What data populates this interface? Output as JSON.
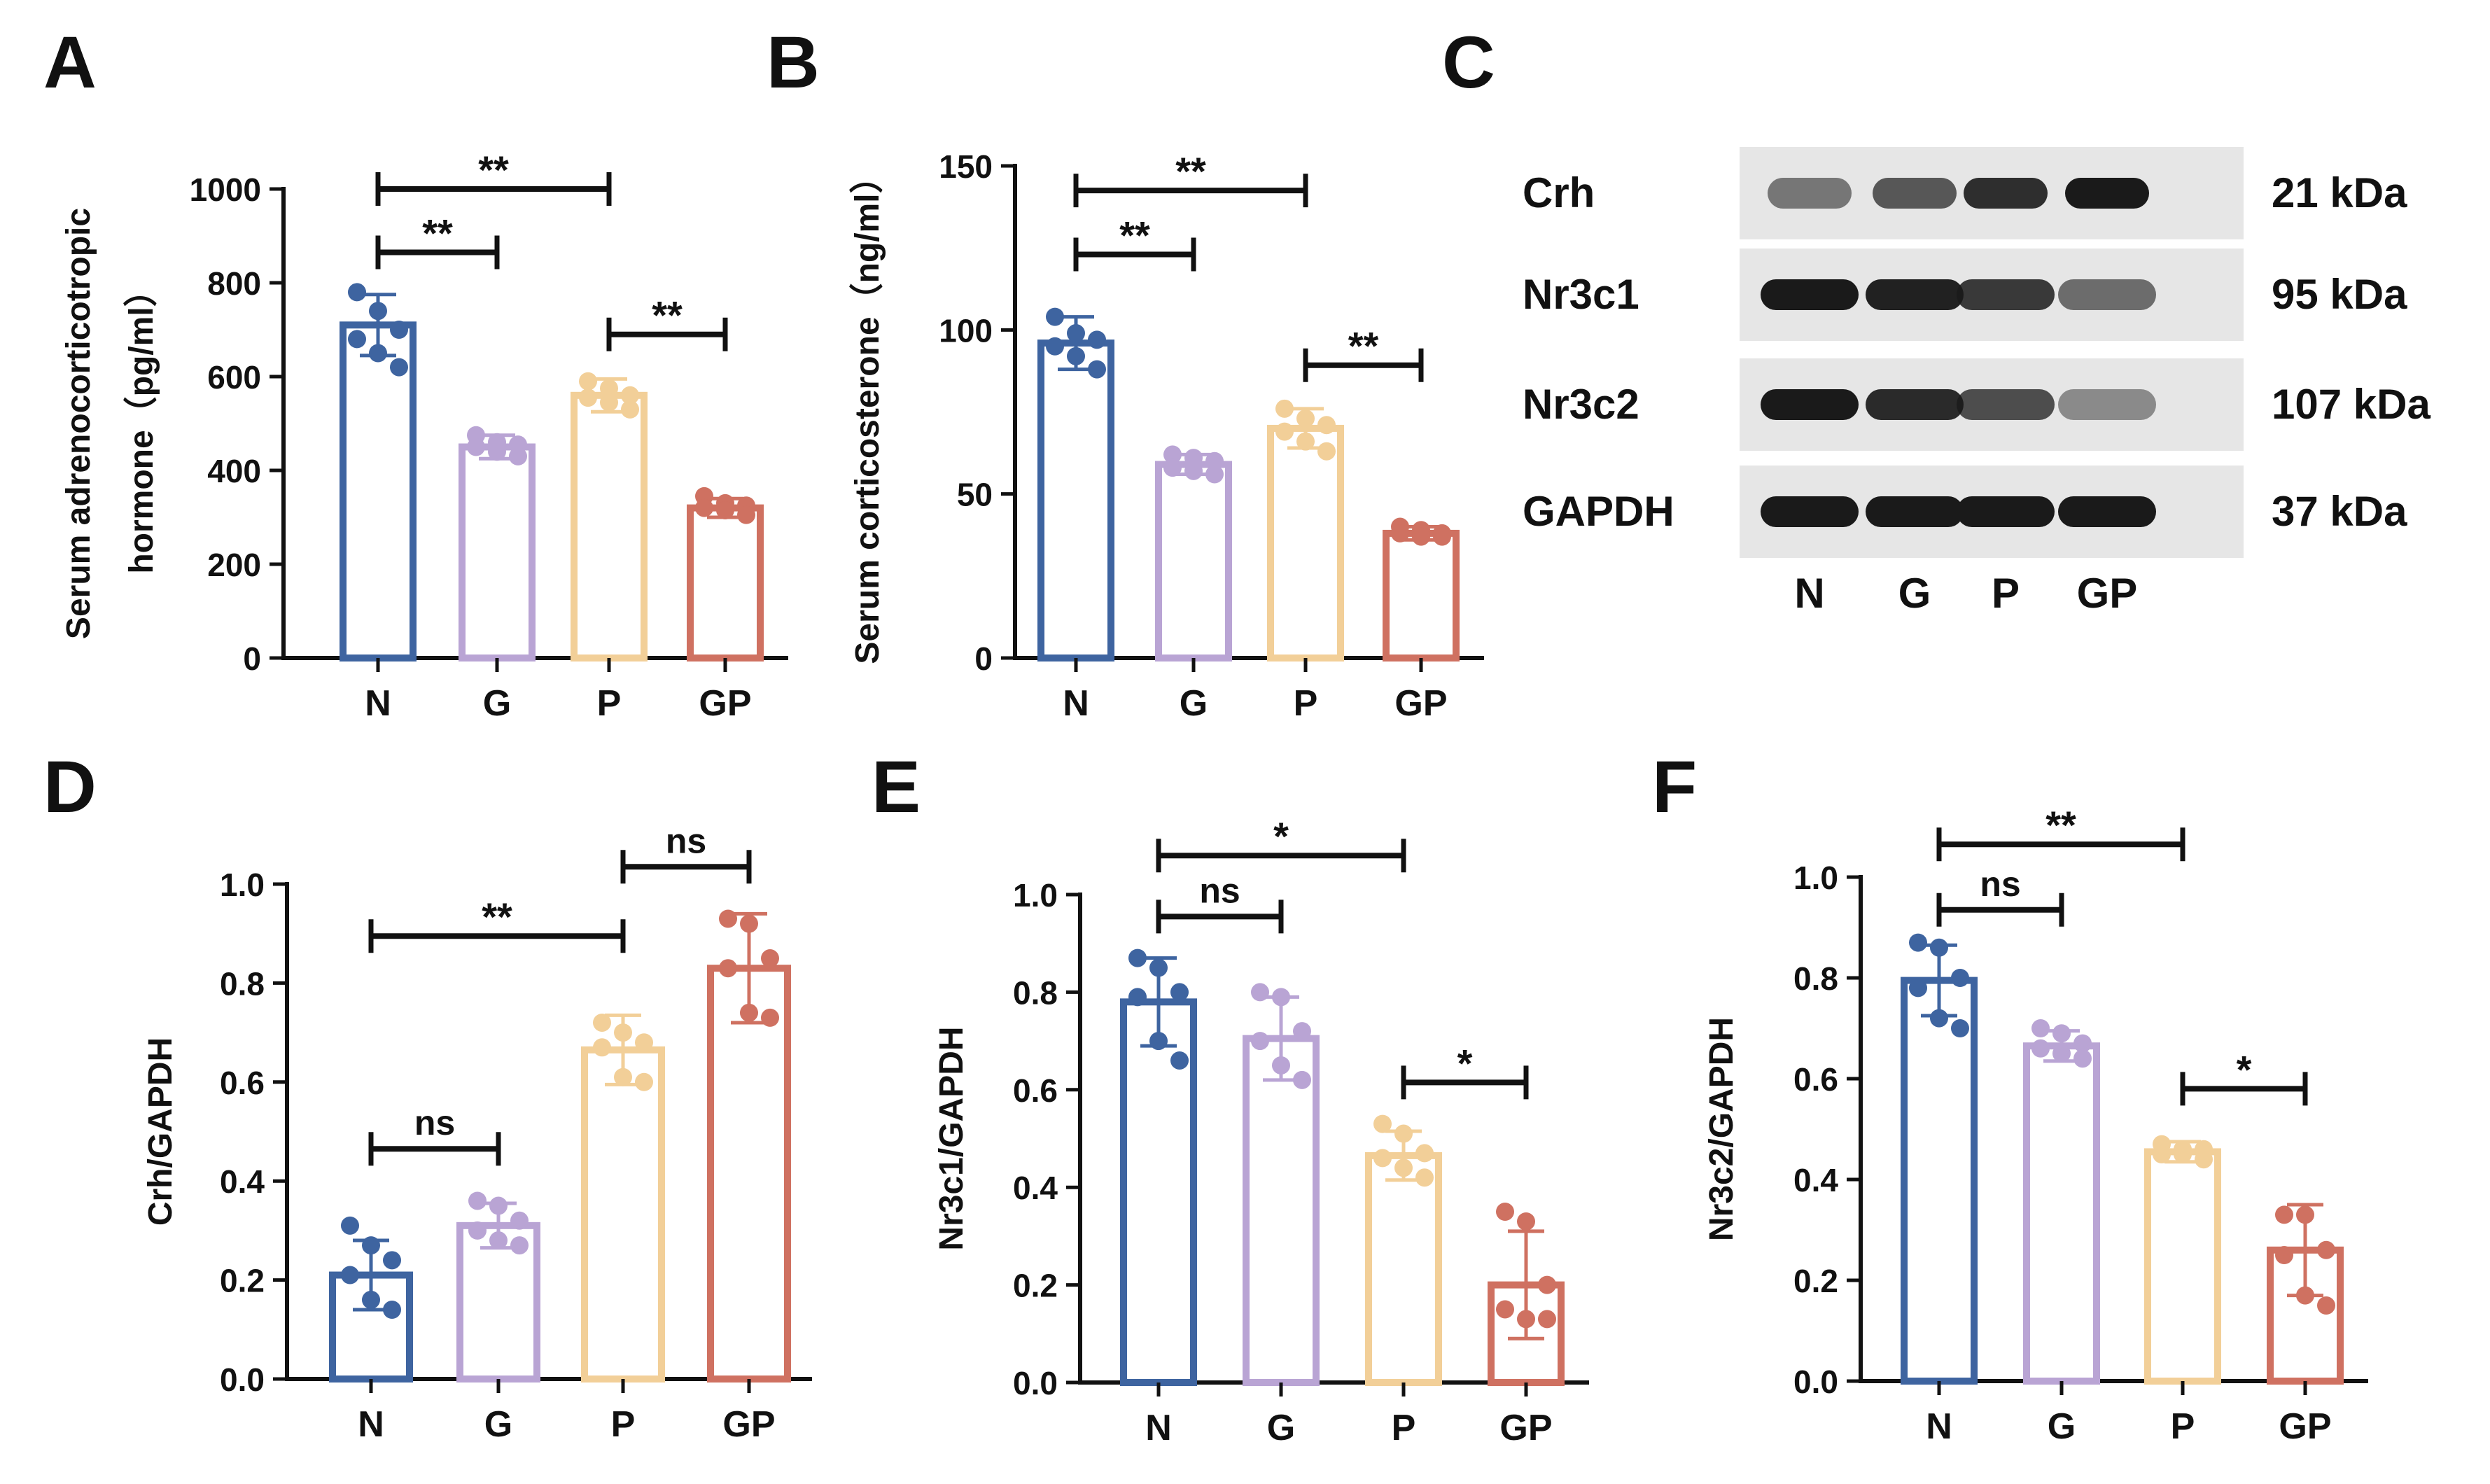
{
  "figure": {
    "panel_letters": [
      "A",
      "B",
      "C",
      "D",
      "E",
      "F"
    ]
  },
  "colors": {
    "N": "#3e64a0",
    "G": "#b9a4d4",
    "P": "#f2cf98",
    "GP": "#cf7161",
    "axis": "#111111"
  },
  "chart_data": [
    {
      "panel": "A",
      "type": "bar",
      "title": "",
      "categories": [
        "N",
        "G",
        "P",
        "GP"
      ],
      "ylabel_lines": [
        "Serum adrenocorticotropic",
        "hormone（pg/ml）"
      ],
      "ylim": [
        0,
        1000
      ],
      "yticks": [
        "0",
        "200",
        "400",
        "600",
        "800",
        "1000"
      ],
      "values": [
        710,
        450,
        560,
        320
      ],
      "errors": [
        65,
        25,
        35,
        20
      ],
      "points": [
        [
          780,
          740,
          700,
          680,
          650,
          620
        ],
        [
          475,
          460,
          455,
          450,
          440,
          430
        ],
        [
          590,
          575,
          560,
          555,
          545,
          530
        ],
        [
          345,
          330,
          325,
          320,
          315,
          305
        ]
      ],
      "comparisons": [
        {
          "from": "N",
          "to": "G",
          "label": "**",
          "level": 0.865
        },
        {
          "from": "N",
          "to": "P",
          "label": "**",
          "level": 1.0
        },
        {
          "from": "P",
          "to": "GP",
          "label": "**",
          "level": 0.69
        }
      ]
    },
    {
      "panel": "B",
      "type": "bar",
      "title": "",
      "categories": [
        "N",
        "G",
        "P",
        "GP"
      ],
      "ylabel_lines": [
        "Serum corticosterone（ng/ml）"
      ],
      "ylim": [
        0,
        150
      ],
      "yticks": [
        "0",
        "50",
        "100",
        "150"
      ],
      "values": [
        96,
        59,
        70,
        38
      ],
      "errors": [
        8,
        3,
        6,
        2
      ],
      "points": [
        [
          104,
          99,
          97,
          95,
          92,
          88
        ],
        [
          62,
          61,
          60,
          58,
          57,
          56
        ],
        [
          76,
          73,
          71,
          69,
          66,
          63
        ],
        [
          40,
          39,
          38,
          38,
          37,
          37
        ]
      ],
      "comparisons": [
        {
          "from": "N",
          "to": "G",
          "label": "**",
          "level": 0.82
        },
        {
          "from": "N",
          "to": "P",
          "label": "**",
          "level": 0.95
        },
        {
          "from": "P",
          "to": "GP",
          "label": "**",
          "level": 0.595
        }
      ]
    },
    {
      "panel": "D",
      "type": "bar",
      "title": "",
      "categories": [
        "N",
        "G",
        "P",
        "GP"
      ],
      "ylabel_lines": [
        "Crh/GAPDH"
      ],
      "ylim": [
        0,
        1.0
      ],
      "yticks": [
        "0.0",
        "0.2",
        "0.4",
        "0.6",
        "0.8",
        "1.0"
      ],
      "values": [
        0.21,
        0.31,
        0.665,
        0.83
      ],
      "errors": [
        0.07,
        0.045,
        0.07,
        0.11
      ],
      "points": [
        [
          0.31,
          0.27,
          0.24,
          0.21,
          0.16,
          0.14
        ],
        [
          0.36,
          0.35,
          0.32,
          0.3,
          0.28,
          0.27
        ],
        [
          0.72,
          0.7,
          0.68,
          0.67,
          0.61,
          0.6
        ],
        [
          0.93,
          0.92,
          0.85,
          0.83,
          0.74,
          0.73
        ]
      ],
      "comparisons": [
        {
          "from": "N",
          "to": "G",
          "label": "ns",
          "level": 0.465
        },
        {
          "from": "N",
          "to": "P",
          "label": "**",
          "level": 0.895
        },
        {
          "from": "P",
          "to": "GP",
          "label": "ns",
          "level": 1.035
        }
      ]
    },
    {
      "panel": "E",
      "type": "bar",
      "title": "",
      "categories": [
        "N",
        "G",
        "P",
        "GP"
      ],
      "ylabel_lines": [
        "Nr3c1/GAPDH"
      ],
      "ylim": [
        0,
        1.0
      ],
      "yticks": [
        "0.0",
        "0.2",
        "0.4",
        "0.6",
        "0.8",
        "1.0"
      ],
      "values": [
        0.78,
        0.705,
        0.465,
        0.2
      ],
      "errors": [
        0.09,
        0.085,
        0.05,
        0.11
      ],
      "points": [
        [
          0.87,
          0.85,
          0.8,
          0.79,
          0.7,
          0.66
        ],
        [
          0.8,
          0.79,
          0.72,
          0.7,
          0.65,
          0.62
        ],
        [
          0.53,
          0.51,
          0.47,
          0.46,
          0.44,
          0.42
        ],
        [
          0.35,
          0.33,
          0.2,
          0.15,
          0.13,
          0.13
        ]
      ],
      "comparisons": [
        {
          "from": "N",
          "to": "G",
          "label": "ns",
          "level": 0.955
        },
        {
          "from": "N",
          "to": "P",
          "label": "*",
          "level": 1.08
        },
        {
          "from": "P",
          "to": "GP",
          "label": "*",
          "level": 0.615
        }
      ]
    },
    {
      "panel": "F",
      "type": "bar",
      "title": "",
      "categories": [
        "N",
        "G",
        "P",
        "GP"
      ],
      "ylabel_lines": [
        "Nr3c2/GAPDH"
      ],
      "ylim": [
        0,
        1.0
      ],
      "yticks": [
        "0.0",
        "0.2",
        "0.4",
        "0.6",
        "0.8",
        "1.0"
      ],
      "values": [
        0.795,
        0.665,
        0.455,
        0.26
      ],
      "errors": [
        0.07,
        0.03,
        0.02,
        0.09
      ],
      "points": [
        [
          0.87,
          0.86,
          0.8,
          0.78,
          0.72,
          0.7
        ],
        [
          0.7,
          0.69,
          0.67,
          0.66,
          0.65,
          0.64
        ],
        [
          0.47,
          0.46,
          0.46,
          0.45,
          0.45,
          0.44
        ],
        [
          0.33,
          0.33,
          0.26,
          0.25,
          0.17,
          0.15
        ]
      ],
      "comparisons": [
        {
          "from": "N",
          "to": "G",
          "label": "ns",
          "level": 0.935
        },
        {
          "from": "N",
          "to": "P",
          "label": "**",
          "level": 1.065
        },
        {
          "from": "P",
          "to": "GP",
          "label": "*",
          "level": 0.58
        }
      ]
    }
  ],
  "western_blot": {
    "panel": "C",
    "lanes": [
      "N",
      "G",
      "P",
      "GP"
    ],
    "rows": [
      {
        "label": "Crh",
        "size": "21 kDa",
        "intensities": [
          0.55,
          0.7,
          0.9,
          1.0
        ]
      },
      {
        "label": "Nr3c1",
        "size": "95 kDa",
        "intensities": [
          1.0,
          0.97,
          0.85,
          0.6
        ]
      },
      {
        "label": "Nr3c2",
        "size": "107 kDa",
        "intensities": [
          1.0,
          0.92,
          0.75,
          0.45
        ]
      },
      {
        "label": "GAPDH",
        "size": "37 kDa",
        "intensities": [
          1.0,
          1.0,
          1.0,
          1.0
        ]
      }
    ]
  }
}
